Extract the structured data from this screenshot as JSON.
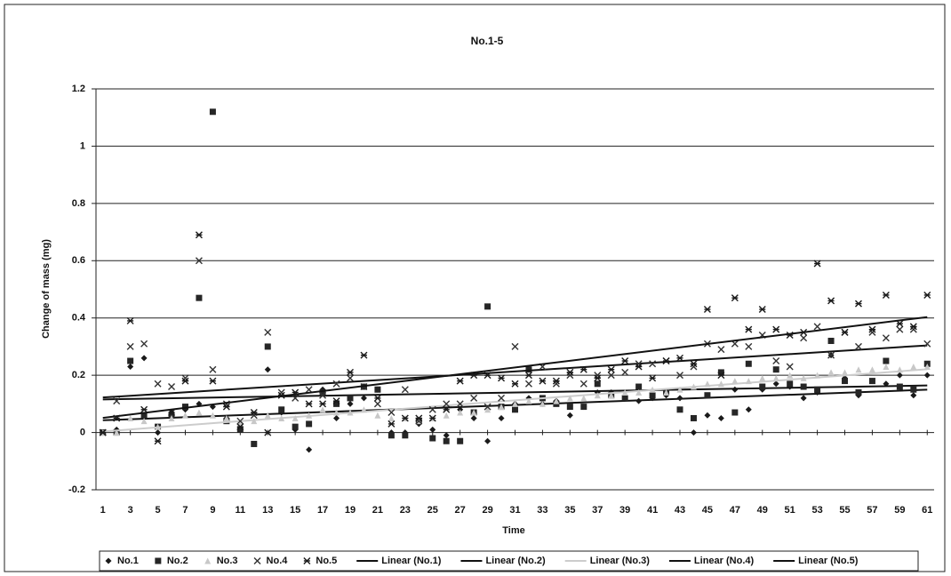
{
  "chart_data": {
    "type": "scatter",
    "title": "No.1-5",
    "x_label": "Time",
    "y_label": "Change of mass (mg)",
    "x": [
      1,
      2,
      3,
      4,
      5,
      6,
      7,
      8,
      9,
      10,
      11,
      12,
      13,
      14,
      15,
      16,
      17,
      18,
      19,
      20,
      21,
      22,
      23,
      24,
      25,
      26,
      27,
      28,
      29,
      30,
      31,
      32,
      33,
      34,
      35,
      36,
      37,
      38,
      39,
      40,
      41,
      42,
      43,
      44,
      45,
      46,
      47,
      48,
      49,
      50,
      51,
      52,
      53,
      54,
      55,
      56,
      57,
      58,
      59,
      60,
      61
    ],
    "xlim": [
      0.5,
      61.5
    ],
    "xticks": [
      1,
      3,
      5,
      7,
      9,
      11,
      13,
      15,
      17,
      19,
      21,
      23,
      25,
      27,
      29,
      31,
      33,
      35,
      37,
      39,
      41,
      43,
      45,
      47,
      49,
      51,
      53,
      55,
      57,
      59,
      61
    ],
    "ylim": [
      -0.2,
      1.2
    ],
    "yticks": [
      -0.2,
      0,
      0.2,
      0.4,
      0.6,
      0.8,
      1,
      1.2
    ],
    "grid": true,
    "legend": "bottom",
    "series": [
      {
        "name": "No.1",
        "marker": "diamond",
        "color": "#1a1a1a",
        "trendline_name": "Linear (No.1)",
        "values": [
          0,
          0.01,
          0.23,
          0.26,
          0.0,
          0.07,
          0.08,
          0.1,
          0.09,
          0.05,
          0.02,
          -0.04,
          0.22,
          0.07,
          0.01,
          -0.06,
          0.15,
          0.05,
          0.1,
          0.12,
          0.15,
          0.0,
          0.0,
          0.03,
          0.01,
          -0.01,
          0.08,
          0.05,
          -0.03,
          0.05,
          0.1,
          0.12,
          0.1,
          0.11,
          0.06,
          0.09,
          0.14,
          0.14,
          0.12,
          0.11,
          0.12,
          0.13,
          0.12,
          0.0,
          0.06,
          0.05,
          0.15,
          0.08,
          0.15,
          0.17,
          0.16,
          0.12,
          0.14,
          0.27,
          0.19,
          0.13,
          0.18,
          0.17,
          0.2,
          0.13,
          0.2
        ]
      },
      {
        "name": "No.2",
        "marker": "square",
        "color": "#262626",
        "trendline_name": "Linear (No.2)",
        "values": [
          0,
          0.0,
          0.25,
          0.06,
          0.02,
          0.06,
          0.09,
          0.47,
          1.12,
          0.04,
          0.01,
          -0.04,
          0.3,
          0.08,
          0.02,
          0.03,
          0.14,
          0.1,
          0.12,
          0.16,
          0.15,
          -0.01,
          -0.01,
          0.04,
          -0.02,
          -0.03,
          -0.03,
          0.07,
          0.44,
          0.09,
          0.08,
          0.22,
          0.12,
          0.1,
          0.09,
          0.09,
          0.17,
          0.13,
          0.12,
          0.16,
          0.13,
          0.14,
          0.08,
          0.05,
          0.13,
          0.21,
          0.07,
          0.24,
          0.16,
          0.22,
          0.17,
          0.16,
          0.15,
          0.32,
          0.18,
          0.14,
          0.18,
          0.25,
          0.16,
          0.15,
          0.24
        ]
      },
      {
        "name": "No.3",
        "marker": "triangle",
        "color": "#c8c8c8",
        "trendline_name": "Linear (No.3)",
        "values": [
          0,
          0.0,
          0.05,
          0.04,
          0.02,
          0.05,
          0.06,
          0.07,
          0.06,
          0.05,
          0.03,
          0.04,
          0.06,
          0.05,
          0.05,
          0.06,
          0.08,
          0.07,
          0.07,
          0.08,
          0.06,
          0.05,
          0.05,
          0.04,
          0.05,
          0.06,
          0.07,
          0.07,
          0.08,
          0.09,
          0.1,
          0.11,
          0.1,
          0.11,
          0.12,
          0.12,
          0.13,
          0.13,
          0.14,
          0.14,
          0.15,
          0.14,
          0.15,
          0.16,
          0.17,
          0.17,
          0.18,
          0.18,
          0.19,
          0.19,
          0.2,
          0.19,
          0.2,
          0.21,
          0.21,
          0.22,
          0.22,
          0.23,
          0.22,
          0.23,
          0.23
        ]
      },
      {
        "name": "No.4",
        "marker": "cross",
        "color": "#333333",
        "trendline_name": "Linear (No.4)",
        "values": [
          0,
          0.11,
          0.3,
          0.31,
          0.17,
          0.16,
          0.19,
          0.6,
          0.22,
          0.1,
          0.04,
          0.06,
          0.35,
          0.14,
          0.12,
          0.15,
          0.13,
          0.17,
          0.19,
          0.16,
          0.1,
          0.07,
          0.15,
          0.04,
          0.08,
          0.1,
          0.1,
          0.12,
          0.09,
          0.12,
          0.3,
          0.17,
          0.23,
          0.17,
          0.2,
          0.17,
          0.2,
          0.2,
          0.21,
          0.24,
          0.24,
          0.25,
          0.2,
          0.23,
          0.31,
          0.29,
          0.31,
          0.3,
          0.34,
          0.25,
          0.23,
          0.33,
          0.37,
          0.27,
          0.35,
          0.3,
          0.35,
          0.33,
          0.36,
          0.36,
          0.31
        ]
      },
      {
        "name": "No.5",
        "marker": "star",
        "color": "#1a1a1a",
        "trendline_name": "Linear (No.5)",
        "values": [
          0,
          0.05,
          0.39,
          0.08,
          -0.03,
          0.07,
          0.18,
          0.69,
          0.18,
          0.09,
          0.02,
          0.07,
          0.0,
          0.13,
          0.14,
          0.1,
          0.1,
          0.11,
          0.21,
          0.27,
          0.12,
          0.03,
          0.05,
          0.05,
          0.05,
          0.08,
          0.18,
          0.2,
          0.2,
          0.19,
          0.17,
          0.2,
          0.18,
          0.18,
          0.21,
          0.22,
          0.19,
          0.22,
          0.25,
          0.23,
          0.19,
          0.25,
          0.26,
          0.24,
          0.43,
          0.2,
          0.47,
          0.36,
          0.43,
          0.36,
          0.34,
          0.35,
          0.59,
          0.46,
          0.35,
          0.45,
          0.36,
          0.48,
          0.38,
          0.37,
          0.48
        ]
      }
    ]
  }
}
